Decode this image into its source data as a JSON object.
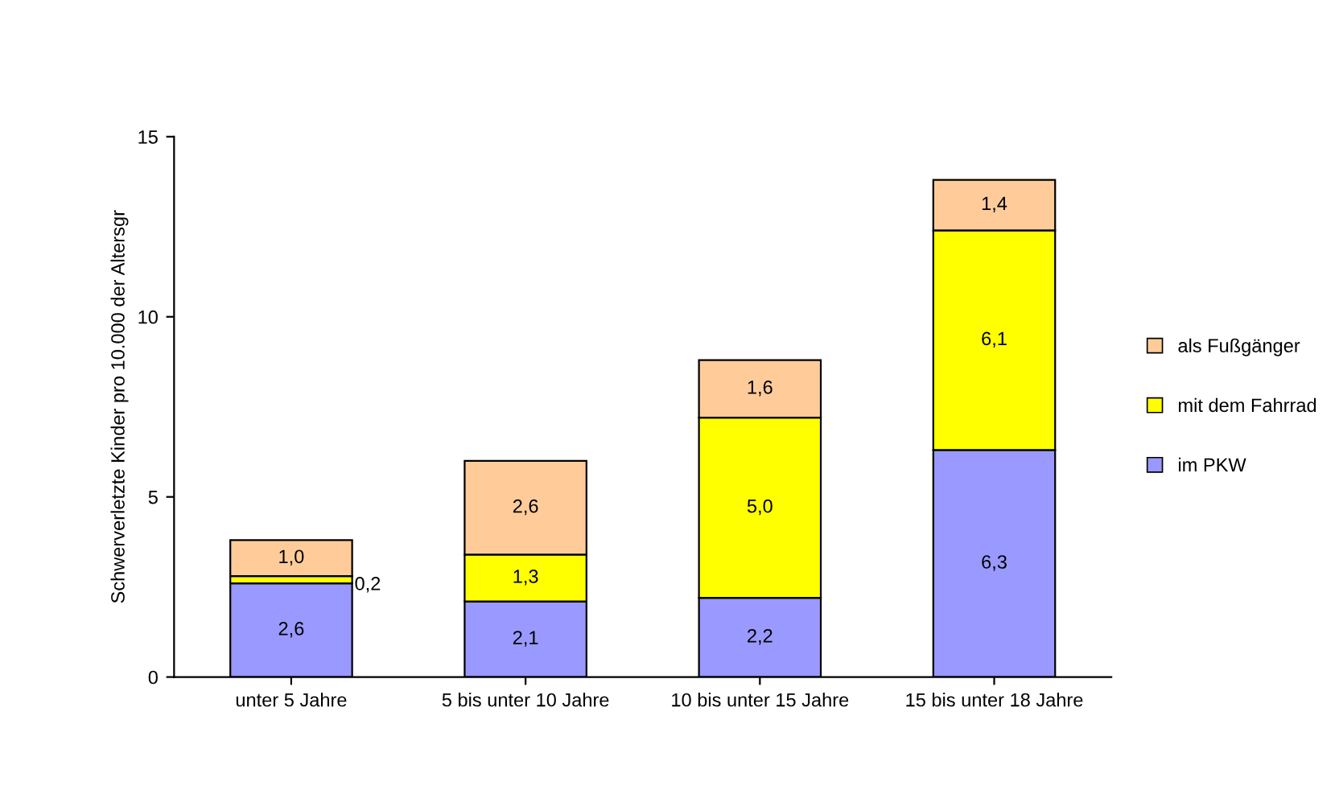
{
  "chart_data": {
    "type": "bar",
    "stacked": true,
    "ylabel": "Schwerverletzte Kinder pro 10.000 der Altersgr",
    "categories": [
      "unter 5 Jahre",
      "5 bis unter 10 Jahre",
      "10 bis unter 15 Jahre",
      "15 bis unter 18 Jahre"
    ],
    "series": [
      {
        "name": "im PKW",
        "color": "#9999ff",
        "values": [
          2.6,
          2.1,
          2.2,
          6.3
        ],
        "value_labels": [
          "2,6",
          "2,1",
          "2,2",
          "6,3"
        ]
      },
      {
        "name": "mit dem Fahrrad",
        "color": "#ffff00",
        "values": [
          0.2,
          1.3,
          5.0,
          6.1
        ],
        "value_labels": [
          "0,2",
          "1,3",
          "5,0",
          "6,1"
        ]
      },
      {
        "name": "als Fußgänger",
        "color": "#ffcc99",
        "values": [
          1.0,
          2.6,
          1.6,
          1.4
        ],
        "value_labels": [
          "1,0",
          "2,6",
          "1,6",
          "1,4"
        ]
      }
    ],
    "ylim": [
      0,
      15
    ],
    "yticks": [
      0,
      5,
      10,
      15
    ],
    "grid": false,
    "legend": "right"
  }
}
